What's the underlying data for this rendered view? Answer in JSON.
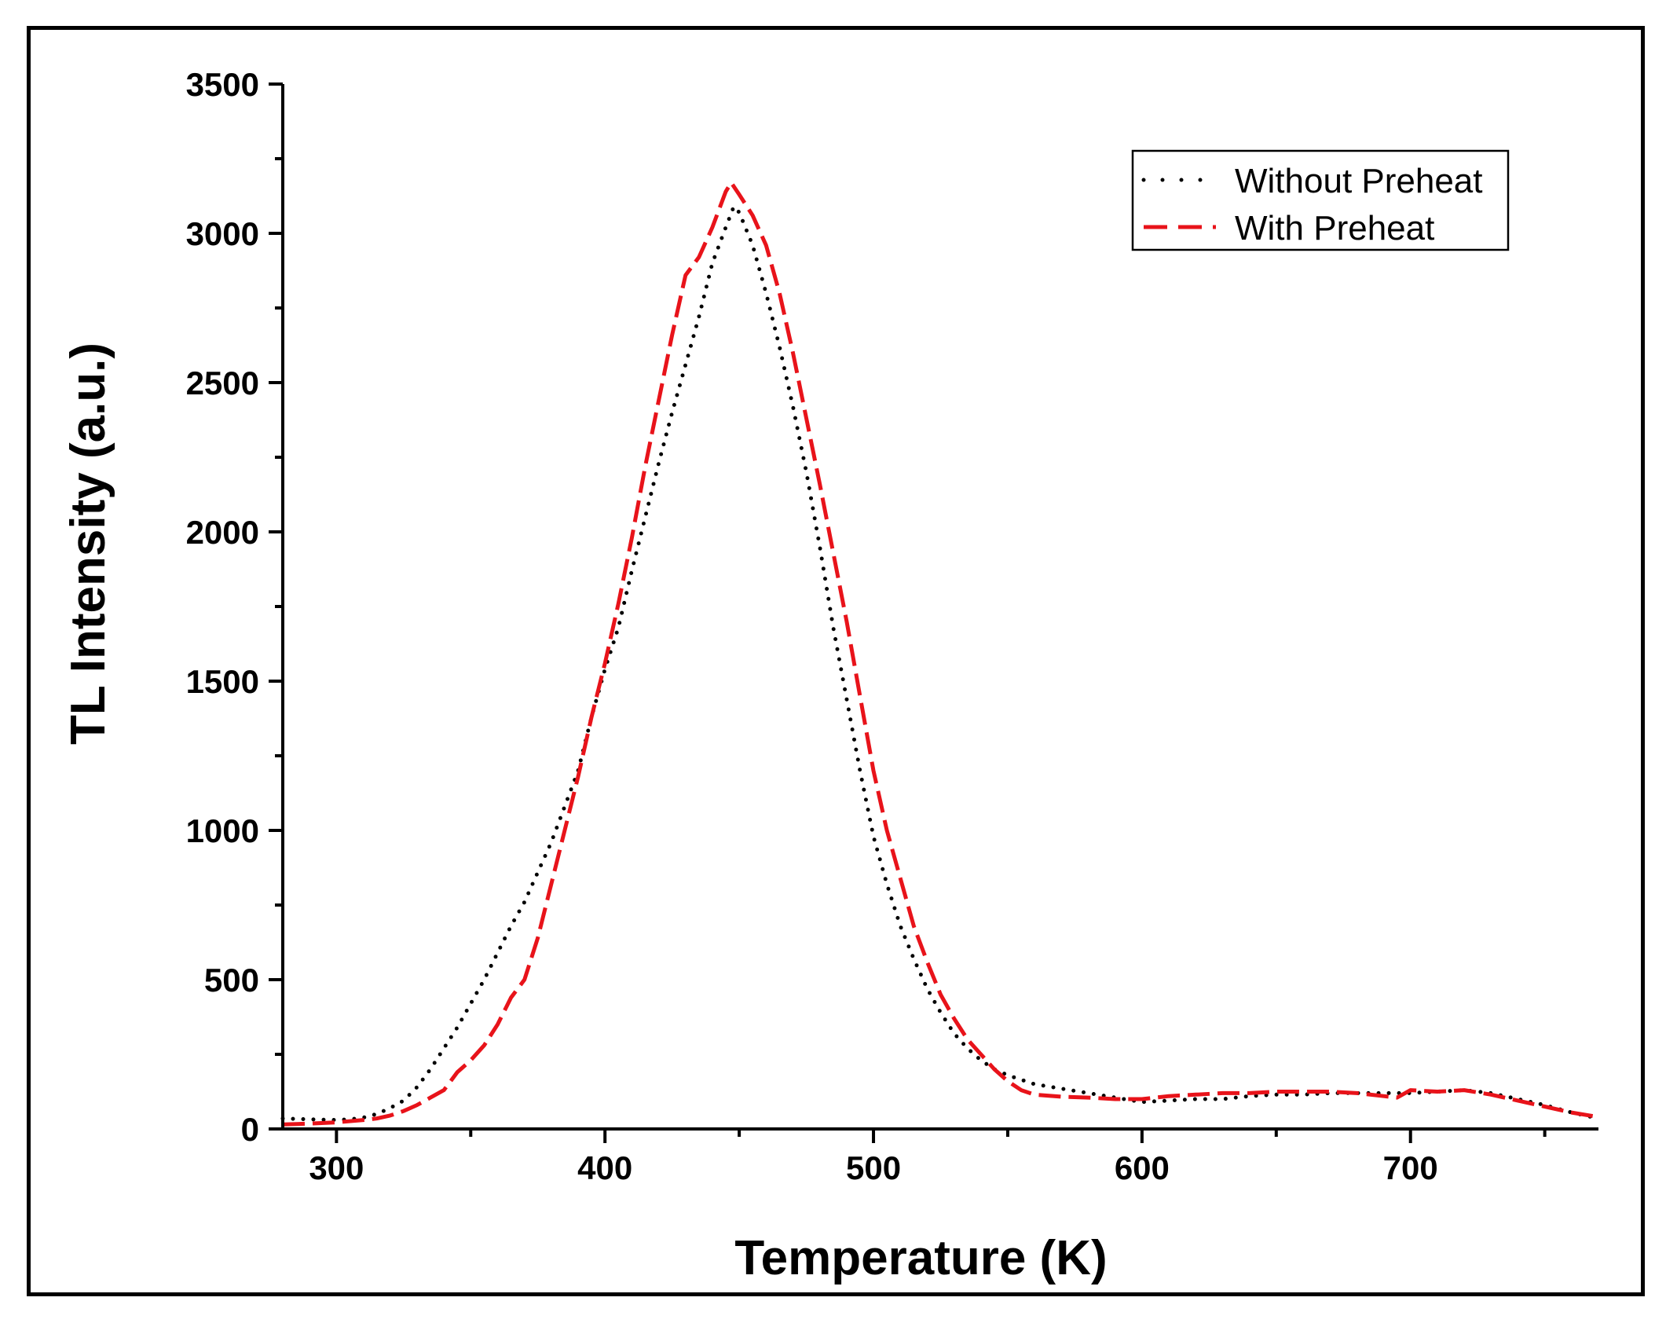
{
  "chart_data": {
    "type": "line",
    "title": "",
    "xlabel": "Temperature (K)",
    "ylabel": "TL Intensity (a.u.)",
    "xlim": [
      280,
      770
    ],
    "ylim": [
      0,
      3500
    ],
    "xticks": [
      300,
      400,
      500,
      600,
      700
    ],
    "yticks": [
      0,
      500,
      1000,
      1500,
      2000,
      2500,
      3000,
      3500
    ],
    "legend_position": "top-right",
    "series": [
      {
        "name": "Without Preheat",
        "color": "#000000",
        "style": "dotted",
        "x": [
          280,
          290,
          300,
          305,
          310,
          315,
          320,
          325,
          330,
          335,
          340,
          345,
          350,
          355,
          360,
          365,
          370,
          375,
          380,
          385,
          390,
          395,
          400,
          405,
          410,
          415,
          420,
          425,
          430,
          435,
          440,
          445,
          448,
          450,
          455,
          460,
          465,
          470,
          475,
          480,
          485,
          490,
          495,
          500,
          505,
          510,
          515,
          520,
          525,
          530,
          535,
          540,
          545,
          550,
          555,
          560,
          570,
          580,
          590,
          600,
          610,
          620,
          630,
          640,
          650,
          660,
          670,
          680,
          690,
          700,
          710,
          720,
          730,
          740,
          750,
          760,
          770
        ],
        "values": [
          35,
          32,
          30,
          32,
          38,
          50,
          70,
          95,
          140,
          200,
          270,
          340,
          420,
          500,
          590,
          680,
          760,
          860,
          960,
          1080,
          1200,
          1380,
          1540,
          1680,
          1870,
          2050,
          2230,
          2400,
          2560,
          2720,
          2900,
          3020,
          3090,
          3070,
          2960,
          2800,
          2620,
          2420,
          2200,
          1950,
          1680,
          1440,
          1200,
          980,
          820,
          680,
          570,
          470,
          390,
          320,
          270,
          230,
          200,
          180,
          165,
          150,
          135,
          120,
          105,
          90,
          95,
          100,
          100,
          110,
          115,
          115,
          120,
          120,
          120,
          120,
          125,
          130,
          120,
          100,
          80,
          55,
          35
        ]
      },
      {
        "name": "With Preheat",
        "color": "#e8131a",
        "style": "dashed",
        "x": [
          280,
          290,
          300,
          310,
          315,
          320,
          325,
          330,
          335,
          340,
          345,
          350,
          355,
          360,
          365,
          370,
          375,
          380,
          385,
          390,
          395,
          400,
          405,
          410,
          415,
          420,
          425,
          430,
          435,
          440,
          445,
          447,
          450,
          455,
          460,
          465,
          470,
          475,
          480,
          485,
          490,
          495,
          500,
          505,
          510,
          515,
          520,
          525,
          530,
          535,
          540,
          545,
          550,
          555,
          560,
          570,
          580,
          590,
          600,
          610,
          620,
          630,
          640,
          650,
          660,
          670,
          680,
          690,
          695,
          700,
          710,
          720,
          730,
          740,
          750,
          760,
          770
        ],
        "values": [
          15,
          18,
          22,
          30,
          35,
          45,
          60,
          80,
          105,
          130,
          190,
          230,
          280,
          350,
          440,
          500,
          640,
          820,
          1000,
          1180,
          1380,
          1560,
          1760,
          1980,
          2220,
          2440,
          2660,
          2860,
          2920,
          3020,
          3140,
          3170,
          3130,
          3060,
          2960,
          2800,
          2600,
          2380,
          2160,
          1930,
          1700,
          1450,
          1200,
          1000,
          840,
          680,
          560,
          450,
          370,
          300,
          250,
          200,
          160,
          130,
          115,
          108,
          105,
          100,
          100,
          110,
          115,
          120,
          120,
          125,
          125,
          125,
          120,
          110,
          105,
          130,
          125,
          130,
          115,
          95,
          75,
          55,
          40
        ]
      }
    ]
  }
}
